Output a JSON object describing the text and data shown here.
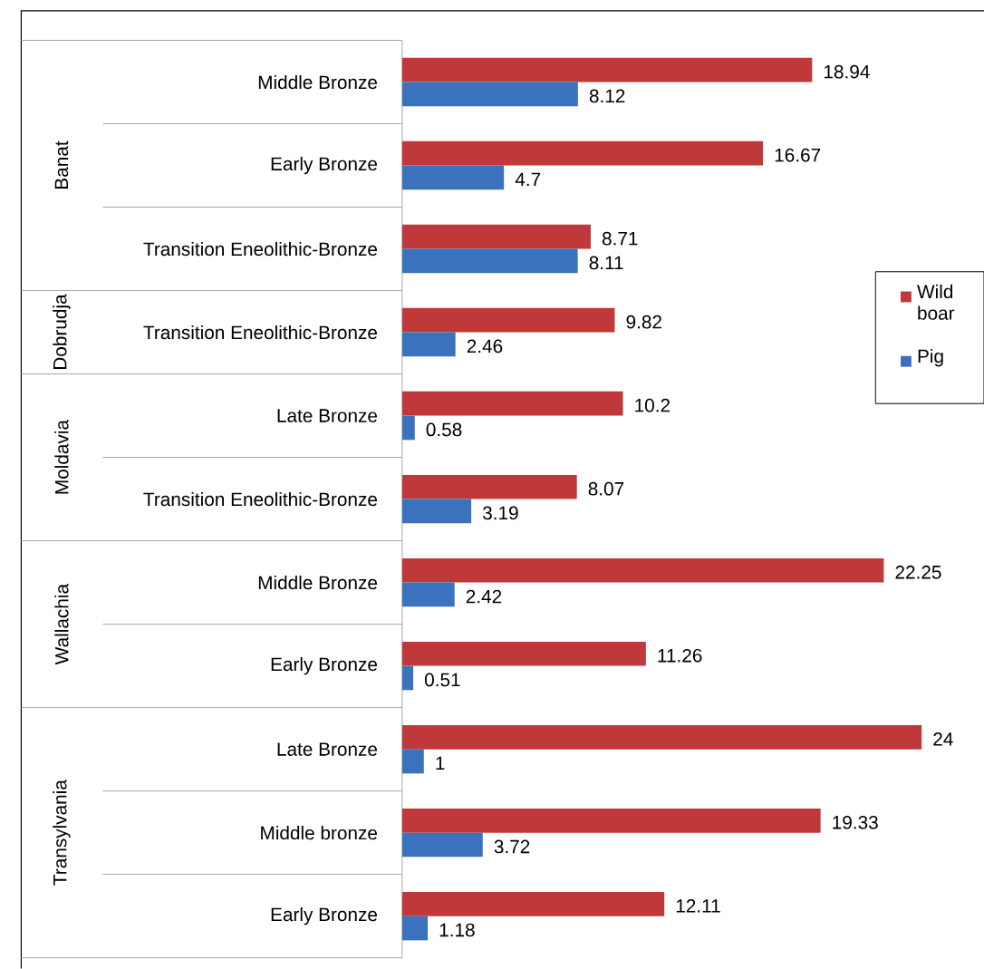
{
  "chart_data": {
    "type": "bar",
    "orientation": "horizontal",
    "categories": [
      "Middle Bronze",
      "Early Bronze",
      "Transition Eneolithic-Bronze",
      "Transition Eneolithic-Bronze",
      "Late Bronze",
      "Transition Eneolithic-Bronze",
      "Middle Bronze",
      "Early Bronze",
      "Late Bronze",
      "Middle bronze",
      "Early Bronze"
    ],
    "series": [
      {
        "name": "Wild boar",
        "color": "#c0393a",
        "values": [
          18.94,
          16.67,
          8.71,
          9.82,
          10.2,
          8.07,
          22.25,
          11.26,
          24,
          19.33,
          12.11
        ]
      },
      {
        "name": "Pig",
        "color": "#3b72bd",
        "values": [
          8.12,
          4.7,
          8.11,
          2.46,
          0.58,
          3.19,
          2.42,
          0.51,
          1,
          3.72,
          1.18
        ]
      }
    ],
    "annotations": [
      "Banat",
      "Dobrudja",
      "Moldavia",
      "Wallachia",
      "Transylvania"
    ],
    "data_labels": true,
    "legend": "right"
  }
}
